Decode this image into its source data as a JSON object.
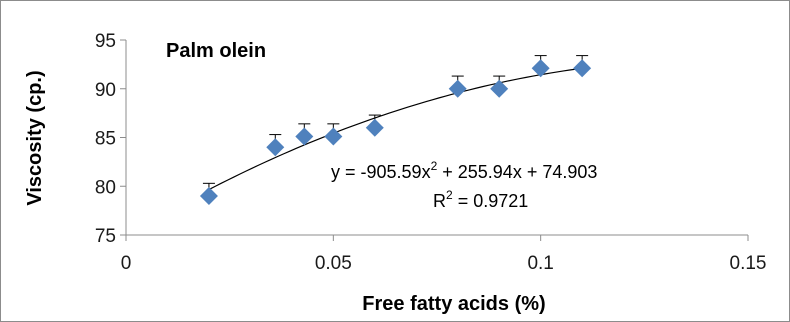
{
  "chart_data": {
    "type": "scatter",
    "series_label": "Palm olein",
    "xlabel": "Free fatty acids (%)",
    "ylabel": "Viscosity (cp.)",
    "xlim": [
      0,
      0.15
    ],
    "ylim": [
      75,
      95
    ],
    "x_ticks": [
      0,
      0.05,
      0.1,
      0.15
    ],
    "x_tick_labels": [
      "0",
      "0.05",
      "0.1",
      "0.15"
    ],
    "y_ticks": [
      75,
      80,
      85,
      90,
      95
    ],
    "y_tick_labels": [
      "75",
      "80",
      "85",
      "90",
      "95"
    ],
    "points": [
      {
        "x": 0.02,
        "y": 79,
        "err": 1.3
      },
      {
        "x": 0.036,
        "y": 84,
        "err": 1.3
      },
      {
        "x": 0.043,
        "y": 85.1,
        "err": 1.3
      },
      {
        "x": 0.05,
        "y": 85.1,
        "err": 1.3
      },
      {
        "x": 0.06,
        "y": 86,
        "err": 1.3
      },
      {
        "x": 0.08,
        "y": 90,
        "err": 1.3
      },
      {
        "x": 0.09,
        "y": 90,
        "err": 1.3
      },
      {
        "x": 0.1,
        "y": 92.1,
        "err": 1.3
      },
      {
        "x": 0.11,
        "y": 92.1,
        "err": 1.3
      }
    ],
    "trendline": {
      "type": "polynomial",
      "coefficients": [
        -905.59,
        255.94,
        74.903
      ],
      "x_range": [
        0.02,
        0.11
      ]
    },
    "equation_prefix": "y = -905.59x",
    "equation_suffix": " + 255.94x + 74.903",
    "r2_prefix": "R",
    "r2_suffix": " = 0.9721",
    "superscript": "2",
    "grid": false,
    "colors": {
      "marker": "#4f81bd",
      "trendline": "#000000",
      "axis": "#8c8c8c",
      "errorbar": "#000000"
    }
  }
}
